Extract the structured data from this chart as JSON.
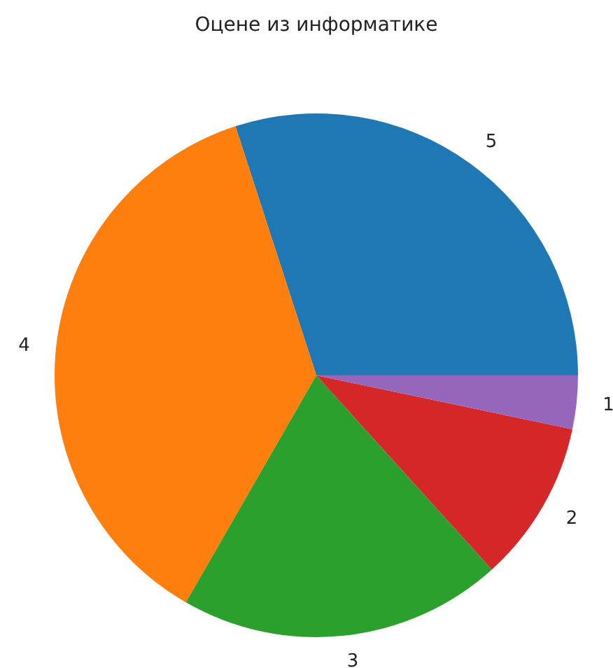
{
  "chart_data": {
    "type": "pie",
    "title": "Оцене из информатике",
    "categories": [
      "5",
      "4",
      "3",
      "2",
      "1"
    ],
    "values": [
      30,
      36.7,
      20,
      10,
      3.3
    ],
    "colors": [
      "#1f77b4",
      "#ff7f0e",
      "#2ca02c",
      "#d62728",
      "#9467bd"
    ]
  }
}
